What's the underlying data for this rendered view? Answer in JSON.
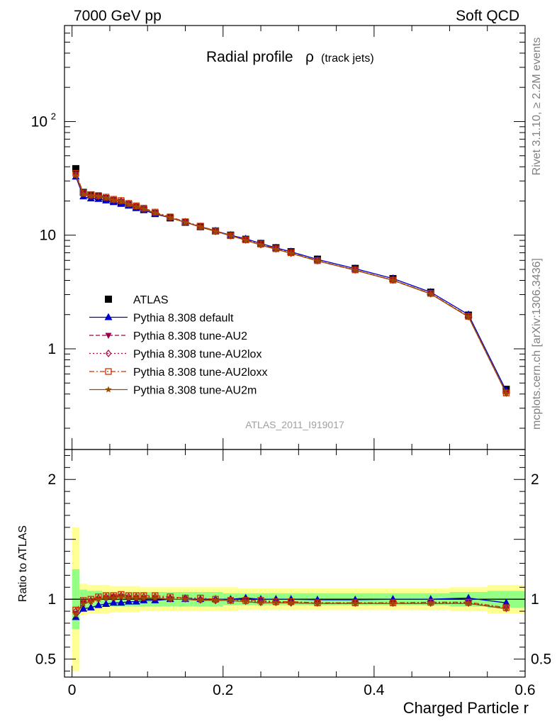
{
  "header": {
    "left": "7000 GeV pp",
    "right": "Soft QCD"
  },
  "title_main": "Radial profile",
  "title_rho": "ρ",
  "title_sub": "(track jets)",
  "side_rivet": "Rivet 3.1.10, ≥ 2.2M events",
  "side_mcplots": "mcplots.cern.ch [arXiv:1306.3436]",
  "analysis_tag": "ATLAS_2011_I919017",
  "chart_data": {
    "type": "line",
    "xlabel": "Charged Particle r",
    "ylabel_ratio": "Ratio to ATLAS",
    "xlim": [
      -0.01,
      0.6
    ],
    "ylim_main": [
      0.13,
      700
    ],
    "ylog_main": true,
    "ylim_ratio": [
      0.35,
      2.25
    ],
    "main_yticks": [
      {
        "v": 1,
        "label": "1"
      },
      {
        "v": 10,
        "label": "10"
      },
      {
        "v": 100,
        "label": "10",
        "sup": "2"
      }
    ],
    "ratio_yticks": [
      {
        "v": 0.5,
        "label": "0.5"
      },
      {
        "v": 1,
        "label": "1"
      },
      {
        "v": 2,
        "label": "2"
      }
    ],
    "xticks": [
      {
        "v": 0,
        "label": "0"
      },
      {
        "v": 0.2,
        "label": "0.2"
      },
      {
        "v": 0.4,
        "label": "0.4"
      },
      {
        "v": 0.6,
        "label": "0.6"
      }
    ],
    "x": [
      0.005,
      0.015,
      0.025,
      0.035,
      0.045,
      0.055,
      0.065,
      0.075,
      0.085,
      0.095,
      0.11,
      0.13,
      0.15,
      0.17,
      0.19,
      0.21,
      0.23,
      0.25,
      0.27,
      0.29,
      0.325,
      0.375,
      0.425,
      0.475,
      0.525,
      0.575
    ],
    "series": [
      {
        "name": "ATLAS",
        "color": "#000000",
        "marker": "square",
        "line": "none",
        "values": [
          38.5,
          23.8,
          22.6,
          21.9,
          21.0,
          20.1,
          19.4,
          18.5,
          17.6,
          16.8,
          15.5,
          14.2,
          13.0,
          11.9,
          10.9,
          10.0,
          9.2,
          8.45,
          7.75,
          7.15,
          6.15,
          5.1,
          4.15,
          3.15,
          1.98,
          0.44
        ],
        "band_green": [
          0.25,
          0.08,
          0.07,
          0.07,
          0.06,
          0.06,
          0.06,
          0.06,
          0.06,
          0.06,
          0.06,
          0.06,
          0.06,
          0.06,
          0.06,
          0.05,
          0.05,
          0.05,
          0.05,
          0.05,
          0.05,
          0.05,
          0.05,
          0.05,
          0.06,
          0.07
        ],
        "band_yellow": [
          0.6,
          0.13,
          0.12,
          0.12,
          0.12,
          0.11,
          0.11,
          0.11,
          0.11,
          0.1,
          0.1,
          0.1,
          0.1,
          0.1,
          0.1,
          0.1,
          0.09,
          0.09,
          0.09,
          0.09,
          0.09,
          0.09,
          0.09,
          0.09,
          0.1,
          0.12
        ]
      },
      {
        "name": "Pythia 8.308 default",
        "color": "#0000cc",
        "marker": "triangle-up",
        "line": "solid",
        "ratio": [
          0.85,
          0.92,
          0.93,
          0.95,
          0.96,
          0.97,
          0.97,
          0.98,
          0.98,
          0.99,
          0.99,
          1.0,
          1.0,
          1.0,
          1.0,
          1.0,
          1.01,
          1.0,
          1.0,
          1.0,
          0.995,
          0.995,
          1.0,
          1.0,
          1.01,
          0.97
        ]
      },
      {
        "name": "Pythia 8.308 tune-AU2",
        "color": "#99004c",
        "marker": "triangle-down",
        "line": "dashed",
        "ratio": [
          0.88,
          0.97,
          0.98,
          1.0,
          1.01,
          1.02,
          1.02,
          1.01,
          1.01,
          1.01,
          1.01,
          1.0,
          1.0,
          0.99,
          0.99,
          0.99,
          0.98,
          0.97,
          0.97,
          0.97,
          0.965,
          0.965,
          0.965,
          0.965,
          0.965,
          0.92
        ]
      },
      {
        "name": "Pythia 8.308 tune-AU2lox",
        "color": "#b3003c",
        "marker": "diamond-open",
        "line": "dotted",
        "ratio": [
          0.9,
          0.98,
          0.99,
          1.01,
          1.02,
          1.02,
          1.03,
          1.02,
          1.02,
          1.02,
          1.02,
          1.01,
          1.01,
          1.0,
          0.99,
          0.99,
          0.99,
          0.98,
          0.98,
          0.97,
          0.97,
          0.97,
          0.97,
          0.97,
          0.97,
          0.93
        ]
      },
      {
        "name": "Pythia 8.308 tune-AU2loxx",
        "color": "#cc3300",
        "marker": "square-open",
        "line": "dashdot",
        "ratio": [
          0.91,
          0.99,
          1.0,
          1.02,
          1.03,
          1.03,
          1.04,
          1.03,
          1.03,
          1.03,
          1.03,
          1.02,
          1.01,
          1.01,
          1.0,
          0.99,
          0.99,
          0.99,
          0.98,
          0.98,
          0.97,
          0.97,
          0.97,
          0.975,
          0.975,
          0.93
        ]
      },
      {
        "name": "Pythia 8.308 tune-AU2m",
        "color": "#994c00",
        "marker": "star",
        "line": "solid",
        "ratio": [
          0.87,
          0.96,
          0.98,
          1.0,
          1.01,
          1.01,
          1.02,
          1.01,
          1.01,
          1.01,
          1.01,
          1.0,
          1.0,
          0.99,
          0.99,
          0.99,
          0.98,
          0.97,
          0.97,
          0.97,
          0.965,
          0.965,
          0.965,
          0.965,
          0.965,
          0.92
        ]
      }
    ]
  }
}
